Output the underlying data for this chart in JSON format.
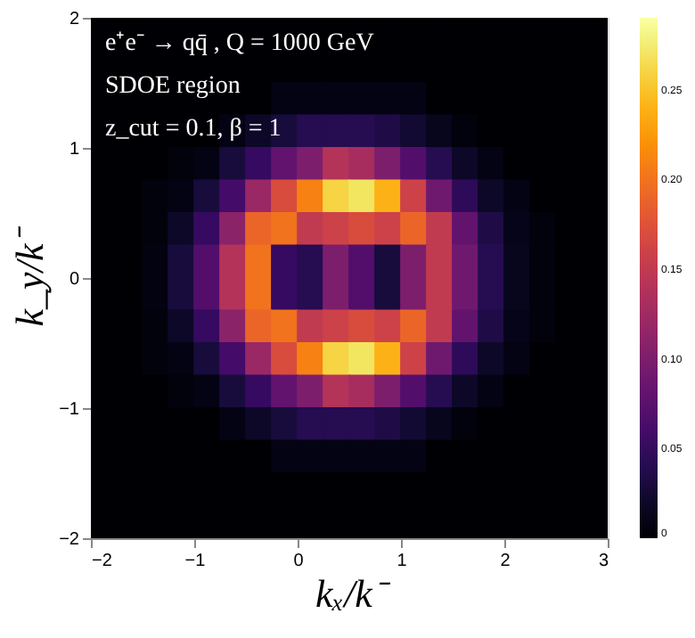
{
  "chart_data": {
    "type": "heatmap",
    "title": "e⁺e⁻ → qq̄ ,  Q = 1000 GeV",
    "annotations": [
      "SDOE region",
      "z_cut = 0.1, β = 1"
    ],
    "xlabel": "kₓ/k⁻",
    "ylabel": "k_y/k⁻",
    "x": [
      -1.875,
      -1.625,
      -1.375,
      -1.125,
      -0.875,
      -0.625,
      -0.375,
      -0.125,
      0.125,
      0.375,
      0.625,
      0.875,
      1.125,
      1.375,
      1.625,
      1.875,
      2.125,
      2.375,
      2.625,
      2.875
    ],
    "xlim": [
      -2,
      3
    ],
    "ylim": [
      -2,
      2
    ],
    "xticks": [
      -2,
      -1,
      0,
      1,
      2,
      3
    ],
    "yticks": [
      -2,
      -1,
      0,
      1,
      2
    ],
    "clim": [
      0,
      0.29
    ],
    "cticks": [
      0,
      0.05,
      {
        "value": 0.1,
        "label": "0.10"
      },
      0.15,
      {
        "value": 0.2,
        "label": "0.20"
      },
      0.25
    ],
    "cells": [
      [
        0,
        0,
        0,
        0,
        0,
        0,
        0,
        0,
        0,
        0,
        0,
        0,
        0,
        0,
        0,
        0,
        0,
        0,
        0,
        0
      ],
      [
        0,
        0,
        0,
        0,
        0,
        0,
        0,
        0,
        0,
        0,
        0,
        0,
        0,
        0,
        0,
        0,
        0,
        0,
        0,
        0
      ],
      [
        0,
        0,
        0,
        0,
        0,
        0,
        0,
        0.01,
        0.01,
        0.01,
        0.01,
        0.01,
        0.01,
        0,
        0,
        0,
        0,
        0,
        0,
        0
      ],
      [
        0,
        0,
        0,
        0,
        0,
        0.01,
        0.02,
        0.03,
        0.04,
        0.04,
        0.04,
        0.035,
        0.025,
        0.015,
        0.005,
        0,
        0,
        0,
        0,
        0
      ],
      [
        0,
        0,
        0,
        0.005,
        0.01,
        0.03,
        0.05,
        0.08,
        0.1,
        0.14,
        0.13,
        0.1,
        0.07,
        0.04,
        0.02,
        0.01,
        0,
        0,
        0,
        0
      ],
      [
        0,
        0,
        0.005,
        0.01,
        0.03,
        0.06,
        0.12,
        0.17,
        0.21,
        0.26,
        0.27,
        0.24,
        0.16,
        0.09,
        0.045,
        0.02,
        0.01,
        0,
        0,
        0
      ],
      [
        0,
        0,
        0.005,
        0.02,
        0.05,
        0.11,
        0.19,
        0.2,
        0.15,
        0.16,
        0.17,
        0.16,
        0.19,
        0.15,
        0.08,
        0.035,
        0.012,
        0.005,
        0,
        0
      ],
      [
        0,
        0,
        0.008,
        0.03,
        0.07,
        0.14,
        0.2,
        0.05,
        0.04,
        0.1,
        0.07,
        0.03,
        0.1,
        0.15,
        0.09,
        0.04,
        0.015,
        0.005,
        0,
        0
      ],
      [
        0,
        0,
        0.008,
        0.03,
        0.07,
        0.14,
        0.2,
        0.05,
        0.04,
        0.1,
        0.07,
        0.03,
        0.1,
        0.15,
        0.09,
        0.04,
        0.015,
        0.005,
        0,
        0
      ],
      [
        0,
        0,
        0.005,
        0.02,
        0.05,
        0.11,
        0.19,
        0.2,
        0.15,
        0.16,
        0.17,
        0.16,
        0.19,
        0.15,
        0.08,
        0.035,
        0.012,
        0.005,
        0,
        0
      ],
      [
        0,
        0,
        0.005,
        0.01,
        0.03,
        0.06,
        0.12,
        0.17,
        0.21,
        0.26,
        0.27,
        0.24,
        0.16,
        0.09,
        0.045,
        0.02,
        0.01,
        0,
        0,
        0
      ],
      [
        0,
        0,
        0,
        0.005,
        0.01,
        0.03,
        0.05,
        0.08,
        0.1,
        0.14,
        0.13,
        0.1,
        0.07,
        0.04,
        0.02,
        0.01,
        0,
        0,
        0,
        0
      ],
      [
        0,
        0,
        0,
        0,
        0,
        0.01,
        0.02,
        0.03,
        0.04,
        0.04,
        0.04,
        0.035,
        0.025,
        0.015,
        0.005,
        0,
        0,
        0,
        0,
        0
      ],
      [
        0,
        0,
        0,
        0,
        0,
        0,
        0,
        0.01,
        0.01,
        0.01,
        0.01,
        0.01,
        0.01,
        0,
        0,
        0,
        0,
        0,
        0,
        0
      ],
      [
        0,
        0,
        0,
        0,
        0,
        0,
        0,
        0,
        0,
        0,
        0,
        0,
        0,
        0,
        0,
        0,
        0,
        0,
        0,
        0
      ],
      [
        0,
        0,
        0,
        0,
        0,
        0,
        0,
        0,
        0,
        0,
        0,
        0,
        0,
        0,
        0,
        0,
        0,
        0,
        0,
        0
      ]
    ]
  }
}
